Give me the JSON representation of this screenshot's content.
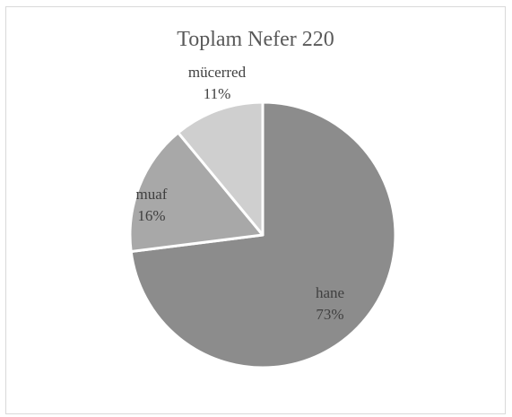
{
  "chart_data": {
    "type": "pie",
    "title": "Toplam Nefer 220",
    "slices": [
      {
        "name": "hane",
        "value": 73,
        "label": "73%",
        "color": "#8c8c8c"
      },
      {
        "name": "muaf",
        "value": 16,
        "label": "16%",
        "color": "#a8a8a8"
      },
      {
        "name": "mücerred",
        "value": 11,
        "label": "11%",
        "color": "#cfcfcf"
      }
    ],
    "start": "12 o'clock",
    "direction": "clockwise",
    "legend": "none",
    "data_labels": "category and percentage"
  }
}
